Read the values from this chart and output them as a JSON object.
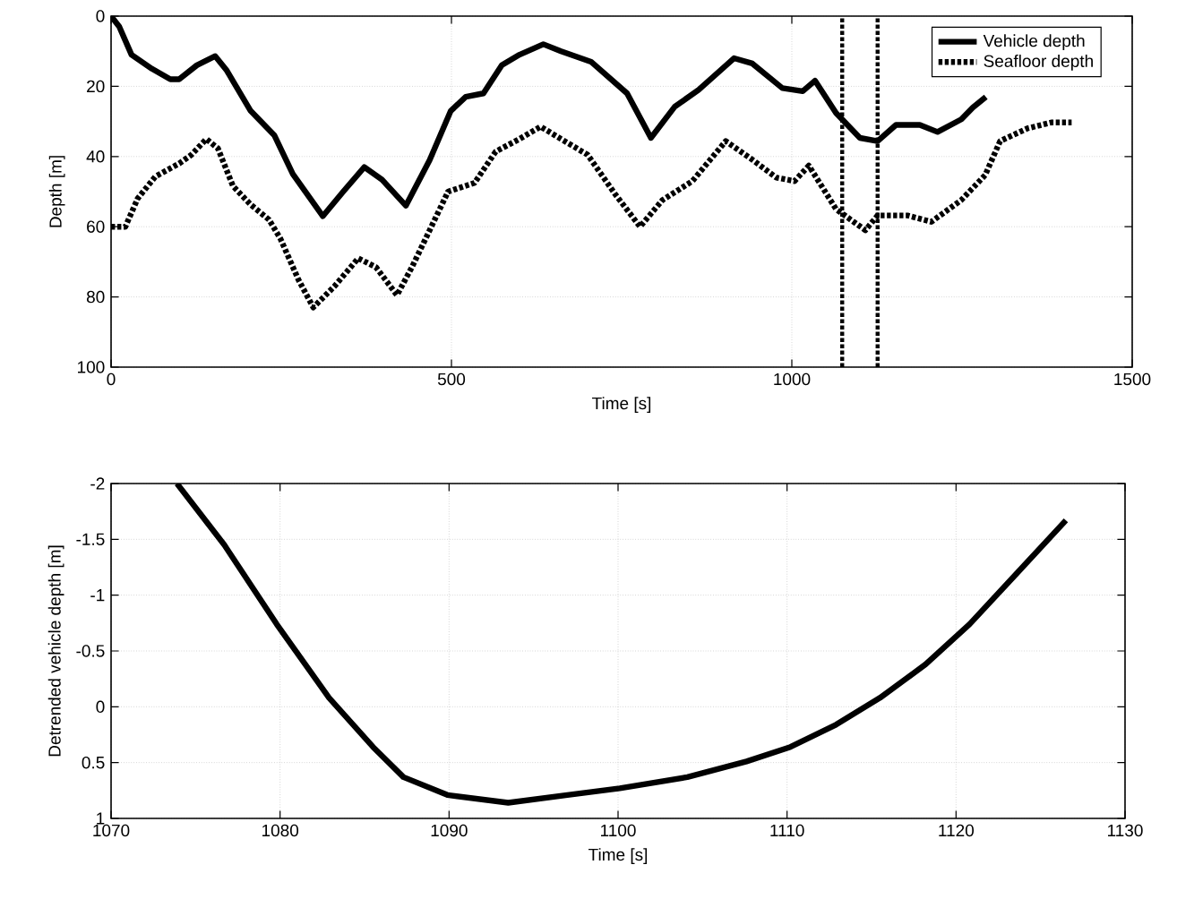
{
  "chart_data": [
    {
      "type": "line",
      "xlabel": "Time [s]",
      "ylabel": "Depth [m]",
      "xlim": [
        0,
        1500
      ],
      "ylim": [
        100,
        0
      ],
      "xticks": [
        0,
        500,
        1000,
        1500
      ],
      "yticks": [
        0,
        20,
        40,
        60,
        80,
        100
      ],
      "grid": true,
      "legend": "top right",
      "series": [
        {
          "name": "Vehicle depth",
          "color": "#000000",
          "line_style": "solid",
          "x": [
            0,
            12,
            30,
            60,
            87,
            100,
            126,
            153,
            170,
            205,
            240,
            267,
            311,
            341,
            372,
            398,
            433,
            468,
            499,
            521,
            547,
            574,
            600,
            635,
            661,
            705,
            758,
            793,
            828,
            863,
            915,
            942,
            986,
            1016,
            1034,
            1065,
            1100,
            1126,
            1153,
            1188,
            1214,
            1249,
            1266,
            1285
          ],
          "values": [
            0,
            3,
            11,
            15,
            18,
            18,
            14,
            11.4,
            15.5,
            27,
            34,
            45,
            57,
            50,
            43,
            46.6,
            54,
            41,
            27,
            23,
            22,
            14,
            11,
            8,
            10,
            13,
            22,
            34.7,
            25.8,
            21,
            12,
            13.5,
            20.5,
            21.4,
            18.4,
            27.6,
            34.7,
            35.6,
            31,
            31,
            33,
            29.4,
            26,
            23
          ]
        },
        {
          "name": "Seafloor depth",
          "color": "#000000",
          "line_style": "dotted",
          "x": [
            0,
            21,
            39,
            65,
            100,
            118,
            140,
            157,
            179,
            205,
            232,
            249,
            275,
            297,
            328,
            363,
            389,
            420,
            442,
            468,
            495,
            534,
            565,
            600,
            631,
            661,
            700,
            740,
            777,
            810,
            854,
            903,
            942,
            977,
            1004,
            1025,
            1065,
            1108,
            1126,
            1170,
            1205,
            1249,
            1284,
            1306,
            1346,
            1381,
            1411
          ],
          "values": [
            60,
            60,
            52,
            45.7,
            42,
            39.5,
            35,
            37.7,
            48.4,
            53.7,
            58,
            63.5,
            75,
            83,
            77,
            69,
            71.5,
            79.5,
            71.5,
            61,
            50,
            47.5,
            38.6,
            35,
            31.5,
            35,
            39.5,
            50.6,
            60,
            52.4,
            47,
            35.6,
            40.9,
            46,
            47,
            42.6,
            55,
            61,
            56.8,
            56.8,
            58.6,
            52.4,
            45.3,
            35.6,
            32,
            30.3,
            30.3
          ]
        }
      ],
      "ref_lines": [
        {
          "axis": "x",
          "value": 1074,
          "color": "#000000",
          "line_style": "dotted"
        },
        {
          "axis": "x",
          "value": 1126,
          "color": "#000000",
          "line_style": "dotted"
        }
      ]
    },
    {
      "type": "line",
      "xlabel": "Time [s]",
      "ylabel": "Detrended vehicle depth [m]",
      "xlim": [
        1070,
        1130
      ],
      "ylim": [
        1,
        -2
      ],
      "xticks": [
        1070,
        1080,
        1090,
        1100,
        1110,
        1120,
        1130
      ],
      "yticks": [
        -2,
        -1.5,
        -1,
        -0.5,
        0,
        0.5,
        1
      ],
      "grid": true,
      "series": [
        {
          "color": "#000000",
          "line_style": "solid",
          "x": [
            1073.9,
            1076.7,
            1079.8,
            1082.9,
            1085.5,
            1087.3,
            1089.9,
            1093.5,
            1097,
            1100.1,
            1104.1,
            1107.6,
            1110.2,
            1112.9,
            1115.5,
            1118.2,
            1120.8,
            1123.5,
            1126.5
          ],
          "values": [
            -2,
            -1.45,
            -0.74,
            -0.08,
            0.36,
            0.63,
            0.79,
            0.86,
            0.79,
            0.73,
            0.63,
            0.49,
            0.36,
            0.16,
            -0.08,
            -0.38,
            -0.74,
            -1.18,
            -1.67
          ]
        }
      ]
    }
  ]
}
